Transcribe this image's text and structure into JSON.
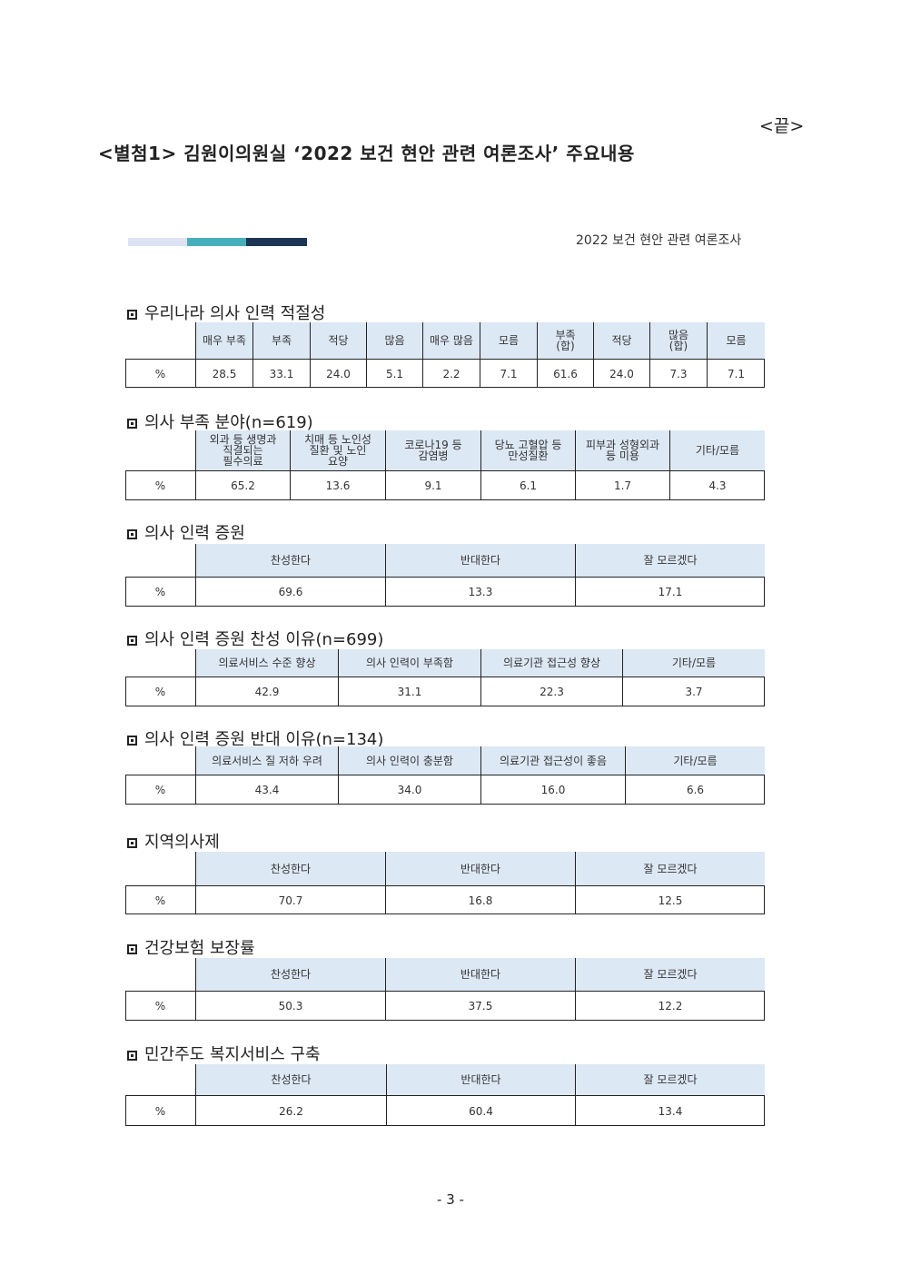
{
  "end_mark": "<끝>",
  "title": "<별첨1> 김원이의원실 ‘2022 보건 현안 관련 여론조사’ 주요내용",
  "survey_name": "2022 보건 현안 관련 여론조사",
  "header_bar_colors": [
    "#dde3f3",
    "#45b0bb",
    "#1b3553"
  ],
  "header_fill_color": "#dde8f5",
  "sections": [
    {
      "title": "우리나라 의사 인력 적절성",
      "headers": [
        "",
        "매우 부족",
        "부족",
        "적당",
        "많음",
        "매우 많음",
        "모름",
        "부족\n(합)",
        "적당",
        "많음\n(합)",
        "모름"
      ],
      "row": [
        "%",
        "28.5",
        "33.1",
        "24.0",
        "5.1",
        "2.2",
        "7.1",
        "61.6",
        "24.0",
        "7.3",
        "7.1"
      ]
    },
    {
      "title": "의사 부족 분야(n=619)",
      "headers": [
        "",
        "외과 등 생명과\n직결되는\n필수의료",
        "치매 등 노인성\n질환 및 노인\n요양",
        "코로나19 등\n감염병",
        "당뇨 고혈압 등\n만성질환",
        "피부과 성형외과\n등 미용",
        "기타/모름"
      ],
      "row": [
        "%",
        "65.2",
        "13.6",
        "9.1",
        "6.1",
        "1.7",
        "4.3"
      ]
    },
    {
      "title": "의사 인력 증원",
      "headers": [
        "",
        "찬성한다",
        "반대한다",
        "잘 모르겠다"
      ],
      "row": [
        "%",
        "69.6",
        "13.3",
        "17.1"
      ]
    },
    {
      "title": "의사 인력 증원 찬성 이유(n=699)",
      "headers": [
        "",
        "의료서비스 수준 향상",
        "의사 인력이 부족함",
        "의료기관 접근성 향상",
        "기타/모름"
      ],
      "row": [
        "%",
        "42.9",
        "31.1",
        "22.3",
        "3.7"
      ]
    },
    {
      "title": "의사 인력 증원 반대 이유(n=134)",
      "headers": [
        "",
        "의료서비스 질 저하 우려",
        "의사 인력이 충분함",
        "의료기관 접근성이 좋음",
        "기타/모름"
      ],
      "row": [
        "%",
        "43.4",
        "34.0",
        "16.0",
        "6.6"
      ]
    },
    {
      "title": "지역의사제",
      "headers": [
        "",
        "찬성한다",
        "반대한다",
        "잘 모르겠다"
      ],
      "row": [
        "%",
        "70.7",
        "16.8",
        "12.5"
      ]
    },
    {
      "title": "건강보험 보장률",
      "headers": [
        "",
        "찬성한다",
        "반대한다",
        "잘 모르겠다"
      ],
      "row": [
        "%",
        "50.3",
        "37.5",
        "12.2"
      ]
    },
    {
      "title": "민간주도 복지서비스 구축",
      "headers": [
        "",
        "찬성한다",
        "반대한다",
        "잘 모르겠다"
      ],
      "row": [
        "%",
        "26.2",
        "60.4",
        "13.4"
      ]
    }
  ],
  "page_number": "- 3 -"
}
